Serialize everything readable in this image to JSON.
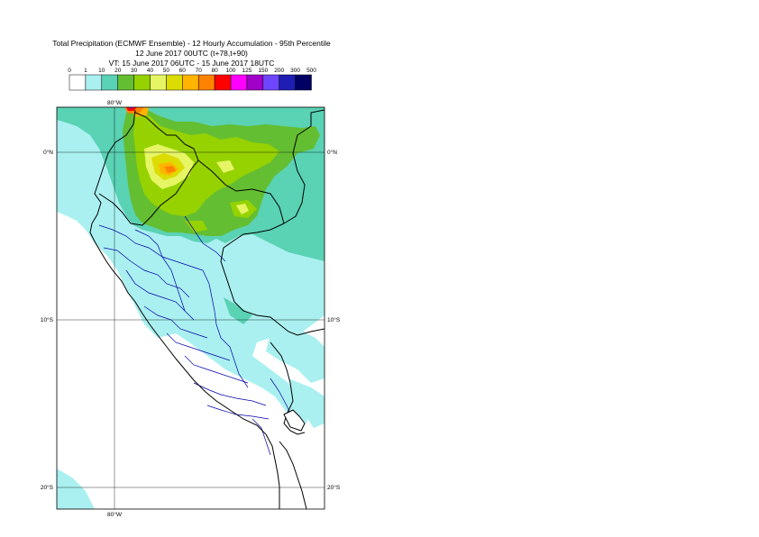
{
  "header": {
    "line1": "Total Precipitation (ECMWF Ensemble) - 12 Hourly Accumulation - 95th Percentile",
    "line2": "12 June 2017 00UTC (t+78,t+90)",
    "line3": "VT: 15 June 2017 06UTC - 15 June 2017 18UTC"
  },
  "legend": {
    "thresholds": [
      "0",
      "1",
      "10",
      "20",
      "30",
      "40",
      "50",
      "60",
      "70",
      "80",
      "100",
      "125",
      "150",
      "200",
      "300",
      "500"
    ],
    "colors": [
      "#ffffff",
      "#aaf0f0",
      "#5ad2b4",
      "#64be32",
      "#96d200",
      "#e6f564",
      "#dcdc00",
      "#ffb400",
      "#ff8200",
      "#ff0000",
      "#ff00ff",
      "#a000c8",
      "#6e46ff",
      "#1e1eb4",
      "#000064"
    ]
  },
  "map": {
    "lon_label_top": "80°W",
    "lon_label_bottom": "80°W",
    "lat_labels": [
      "0°N",
      "10°S",
      "20°S"
    ],
    "lat_label_right": [
      "0°N",
      "10°S",
      "20°S"
    ],
    "border_color": "#000000",
    "admin_color": "#0000aa"
  }
}
